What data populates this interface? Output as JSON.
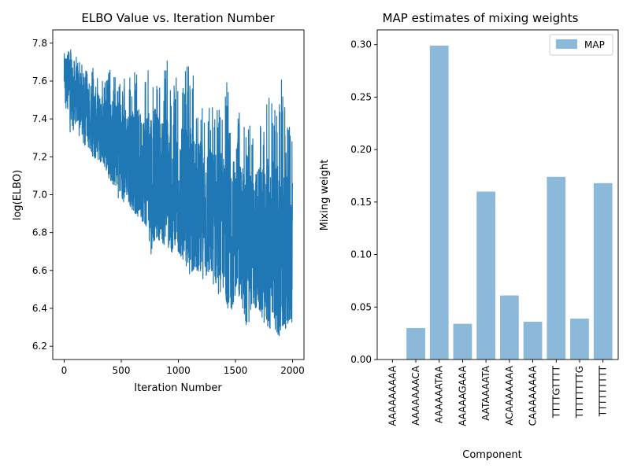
{
  "chart_data": [
    {
      "type": "line",
      "title": "ELBO Value vs. Iteration Number",
      "xlabel": "Iteration Number",
      "ylabel": "log(ELBO)",
      "xlim": [
        -100,
        2100
      ],
      "ylim": [
        6.13,
        7.87
      ],
      "xticks": [
        0,
        500,
        1000,
        1500,
        2000
      ],
      "yticks": [
        6.2,
        6.4,
        6.6,
        6.8,
        7.0,
        7.2,
        7.4,
        7.6,
        7.8
      ],
      "xtick_labels": [
        "0",
        "500",
        "1000",
        "1500",
        "2000"
      ],
      "ytick_labels": [
        "6.2",
        "6.4",
        "6.6",
        "6.8",
        "7.0",
        "7.2",
        "7.4",
        "7.6",
        "7.8"
      ],
      "color": "#1f77b4",
      "series": [
        {
          "x": [
            0,
            50,
            100,
            150,
            200,
            250,
            300,
            350,
            400,
            450,
            500,
            550,
            600,
            650,
            700,
            750,
            800,
            850,
            900,
            950,
            1000,
            1050,
            1100,
            1150,
            1200,
            1250,
            1300,
            1350,
            1400,
            1450,
            1500,
            1550,
            1600,
            1650,
            1700,
            1750,
            1800,
            1850,
            1900,
            1950,
            2000
          ],
          "upper": [
            7.78,
            7.79,
            7.76,
            7.7,
            7.65,
            7.68,
            7.63,
            7.6,
            7.66,
            7.62,
            7.66,
            7.6,
            7.65,
            7.66,
            7.63,
            7.67,
            7.72,
            7.62,
            7.73,
            7.58,
            7.68,
            7.62,
            7.75,
            7.55,
            7.52,
            7.56,
            7.48,
            7.5,
            7.47,
            7.75,
            7.4,
            7.45,
            7.52,
            7.35,
            7.45,
            7.36,
            7.62,
            7.45,
            7.74,
            7.35,
            7.43
          ],
          "lower": [
            7.5,
            7.31,
            7.35,
            7.28,
            7.24,
            7.14,
            7.15,
            7.12,
            7.05,
            7.0,
            6.96,
            6.95,
            6.92,
            6.88,
            6.85,
            6.66,
            6.78,
            6.75,
            6.72,
            6.68,
            6.7,
            6.65,
            6.58,
            6.62,
            6.55,
            6.57,
            6.53,
            6.47,
            6.5,
            6.35,
            6.48,
            6.45,
            6.25,
            6.42,
            6.38,
            6.32,
            6.3,
            6.21,
            6.28,
            6.3,
            6.33
          ],
          "center": [
            7.64,
            7.58,
            7.54,
            7.48,
            7.44,
            7.4,
            7.36,
            7.34,
            7.3,
            7.26,
            7.24,
            7.22,
            7.18,
            7.16,
            7.14,
            7.12,
            7.1,
            7.08,
            7.06,
            7.03,
            7.0,
            6.98,
            6.96,
            6.94,
            6.92,
            6.9,
            6.88,
            6.86,
            6.84,
            6.82,
            6.8,
            6.78,
            6.77,
            6.76,
            6.75,
            6.74,
            6.73,
            6.72,
            6.71,
            6.7,
            6.69
          ]
        }
      ]
    },
    {
      "type": "bar",
      "title": "MAP estimates of mixing weights",
      "xlabel": "Component",
      "ylabel": "Mixing weight",
      "categories": [
        "AAAAAAAAA",
        "AAAAAAACA",
        "AAAAAATAA",
        "AAAAAGAAA",
        "AATAAAATA",
        "ACAAAAAAA",
        "CAAAAAAAA",
        "TTTTGTTTT",
        "TTTTTTTTG",
        "TTTTTTTTT"
      ],
      "series": [
        {
          "name": "MAP",
          "values": [
            0.0,
            0.03,
            0.299,
            0.034,
            0.16,
            0.061,
            0.036,
            0.174,
            0.039,
            0.168
          ]
        }
      ],
      "ylim": [
        0.0,
        0.314
      ],
      "yticks": [
        0.0,
        0.05,
        0.1,
        0.15,
        0.2,
        0.25,
        0.3
      ],
      "ytick_labels": [
        "0.00",
        "0.05",
        "0.10",
        "0.15",
        "0.20",
        "0.25",
        "0.30"
      ],
      "color": "#8cb8d9",
      "legend": "top-right"
    }
  ]
}
